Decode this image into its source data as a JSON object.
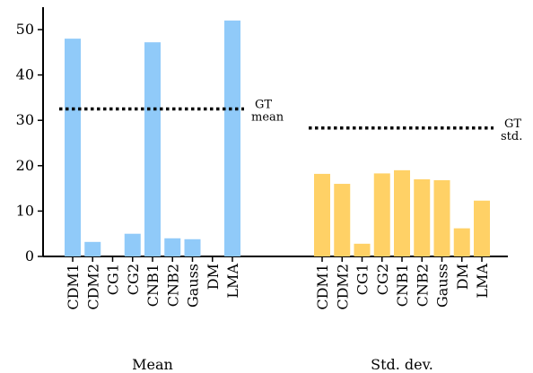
{
  "chart_data": {
    "type": "bar",
    "ylim": [
      0,
      55
    ],
    "yticks": [
      0,
      10,
      20,
      30,
      40,
      50
    ],
    "grid": false,
    "categories": [
      "CDM1",
      "CDM2",
      "CG1",
      "CG2",
      "CNB1",
      "CNB2",
      "Gauss",
      "DM",
      "LMA"
    ],
    "groups": [
      {
        "label": "Mean",
        "color": "#90caf9",
        "values": [
          48,
          3.2,
          0,
          5,
          47.2,
          4,
          3.8,
          0,
          52
        ],
        "reference": {
          "value": 32.5,
          "label_line1": "GT",
          "label_line2": "mean"
        }
      },
      {
        "label": "Std. dev.",
        "color": "#ffd166",
        "values": [
          18.2,
          16,
          2.8,
          18.3,
          19,
          17,
          16.8,
          6.2,
          12.3
        ],
        "reference": {
          "value": 28.3,
          "label_line1": "GT",
          "label_line2": "std."
        }
      }
    ]
  }
}
